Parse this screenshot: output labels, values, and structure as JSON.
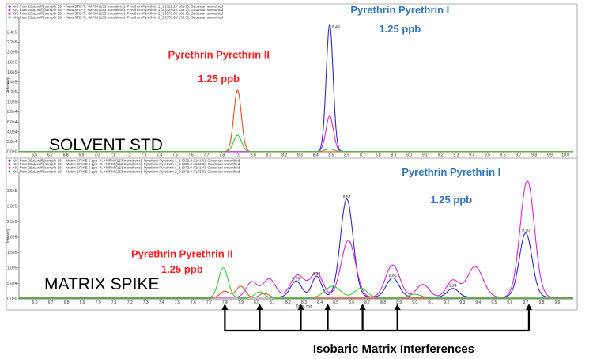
{
  "chart_data": [
    {
      "type": "line",
      "panel": "top",
      "legend": [
        {
          "text": "XIC from 25uL.wiff (sample 59) - Neat STD-7, +MRM (153 transitions): Pyrethrin Pyrethrin 1_1 (329.2 / 161.0), Gaussian smoothed",
          "color": "#2a2ad0"
        },
        {
          "text": "XIC from 25uL.wiff (sample 59) - Neat STD-7, +MRM (153 transitions): Pyrethrin Pyrethrin 1_3 (329.2 / 133.0), Gaussian smoothed",
          "color": "#e020e0"
        },
        {
          "text": "XIC from 25uL.wiff (sample 59) - Neat STD-7, +MRM (153 transitions): Pyrethrin Pyrethrin 2_1 (373.0 / 161.4), Gaussian smoothed",
          "color": "#e8501e"
        },
        {
          "text": "XIC from 25uL.wiff (sample 59) - Neat STD-7, +MRM (153 transitions): Pyrethrin Pyrethrin 2_2 (373.0 / 133.0), Gaussian smoothed",
          "color": "#30d030"
        }
      ],
      "ylabel": "Intensity",
      "xlim": [
        6.5,
        10.05
      ],
      "ylim": [
        0,
        2.7
      ],
      "yunit": "e5",
      "xticks": [
        "6.6",
        "6.7",
        "6.8",
        "6.9",
        "7.0",
        "7.1",
        "7.2",
        "7.3",
        "7.4",
        "7.5",
        "7.6",
        "7.7",
        "7.8",
        "7.9",
        "8.0",
        "8.1",
        "8.2",
        "8.3",
        "8.4",
        "8.5",
        "8.6",
        "8.7",
        "8.8",
        "8.9",
        "9.0",
        "9.1",
        "9.2",
        "9.3",
        "9.4",
        "9.5",
        "9.6",
        "9.7",
        "9.8",
        "9.9",
        "10.0"
      ],
      "yticks": [
        "0.0e0",
        "2.0e4",
        "4.0e4",
        "6.0e4",
        "8.0e4",
        "1.0e5",
        "1.2e5",
        "1.4e5",
        "1.6e5",
        "1.8e5",
        "2.0e5",
        "2.2e5",
        "2.4e5"
      ],
      "ytick_values": [
        0,
        0.2,
        0.4,
        0.6,
        0.8,
        1.0,
        1.2,
        1.4,
        1.6,
        1.8,
        2.0,
        2.2,
        2.4
      ],
      "series": [
        {
          "color": "#2a2ad0",
          "baseline": 0.003,
          "peaks": [
            {
              "x": 8.49,
              "y": 2.57,
              "w": 0.022
            }
          ]
        },
        {
          "color": "#e020e0",
          "baseline": 0.002,
          "peaks": [
            {
              "x": 8.49,
              "y": 0.72,
              "w": 0.024
            }
          ]
        },
        {
          "color": "#e8501e",
          "baseline": 0.002,
          "peaks": [
            {
              "x": 7.9,
              "y": 1.24,
              "w": 0.024
            }
          ]
        },
        {
          "color": "#30d030",
          "baseline": 0.004,
          "peaks": [
            {
              "x": 7.9,
              "y": 0.33,
              "w": 0.025
            },
            {
              "x": 8.49,
              "y": 0.05,
              "w": 0.03
            }
          ]
        }
      ],
      "peak_labels": [
        {
          "text": "8.49",
          "x": 8.53,
          "y": 2.48
        }
      ],
      "label": "SOLVENT STD",
      "annotations": [
        {
          "text": "Pyrethrin Pyrethrin II",
          "style": "red",
          "x": 7.78,
          "y": 1.88
        },
        {
          "text": "1.25 ppb",
          "style": "red",
          "x": 7.78,
          "y": 1.4
        },
        {
          "text": "Pyrethrin Pyrethrin I",
          "style": "blue",
          "x": 8.94,
          "y": 2.78
        },
        {
          "text": "1.25 ppb",
          "style": "blue",
          "x": 8.94,
          "y": 2.4
        }
      ]
    },
    {
      "type": "line",
      "panel": "bottom",
      "legend": [
        {
          "text": "XIC from 25uL.wiff (sample 18) - Matrix SPIKE 5 ppb -4, +MRM (153 transitions): Pyrethrin Pyrethrin 1_1 (329.2 / 161.0), Gaussian smoothed",
          "color": "#2a2ad0"
        },
        {
          "text": "XIC from 25uL.wiff (sample 18) - Matrix SPIKE 5 ppb -4, +MRM (153 transitions): Pyrethrin Pyrethrin 1_3 (329.2 / 133.0), Gaussian smoothed",
          "color": "#e020e0"
        },
        {
          "text": "XIC from 25uL.wiff (sample 18) - Matrix SPIKE 5 ppb -4, +MRM (153 transitions): Pyrethrin Pyrethrin 2_1 (373.0 / 161.4), Gaussian smoothed",
          "color": "#e8501e"
        },
        {
          "text": "XIC from 25uL.wiff (sample 18) - Matrix SPIKE 5 ppb -4, +MRM (153 transitions): Pyrethrin Pyrethrin 2_2 (373.0 / 133.0), Gaussian smoothed",
          "color": "#30d030"
        }
      ],
      "ylabel": "Intensity",
      "xlabel": "Time, min",
      "xlim": [
        6.5,
        10.0
      ],
      "ylim": [
        0,
        4.1
      ],
      "yunit": "e5",
      "xticks": [
        "6.6",
        "6.7",
        "6.8",
        "6.9",
        "7.0",
        "7.1",
        "7.2",
        "7.3",
        "7.4",
        "7.5",
        "7.6",
        "7.7",
        "7.8",
        "7.9",
        "8.0",
        "8.1",
        "8.2",
        "8.3",
        "8.4",
        "8.5",
        "8.6",
        "8.7",
        "8.8",
        "8.9",
        "9.0",
        "9.1",
        "9.2",
        "9.3",
        "9.4",
        "9.5",
        "9.6",
        "9.7",
        "9.8",
        "9.9"
      ],
      "yticks": [
        "0.0e0",
        "5.0e4",
        "1.0e5",
        "1.5e5",
        "2.0e5",
        "2.5e5",
        "3.0e5",
        "3.5e5"
      ],
      "ytick_values": [
        0,
        0.5,
        1.0,
        1.5,
        2.0,
        2.5,
        3.0,
        3.5
      ],
      "series": [
        {
          "color": "#2a2ad0",
          "baseline": 0.06,
          "peaks": [
            {
              "x": 8.25,
              "y": 0.52,
              "w": 0.035
            },
            {
              "x": 8.38,
              "y": 0.68,
              "w": 0.03
            },
            {
              "x": 8.57,
              "y": 3.18,
              "w": 0.04
            },
            {
              "x": 8.86,
              "y": 0.62,
              "w": 0.04
            },
            {
              "x": 9.24,
              "y": 0.28,
              "w": 0.035
            },
            {
              "x": 9.7,
              "y": 2.08,
              "w": 0.04
            }
          ]
        },
        {
          "color": "#e020e0",
          "baseline": 0.05,
          "peaks": [
            {
              "x": 7.97,
              "y": 0.5,
              "w": 0.035
            },
            {
              "x": 8.08,
              "y": 0.6,
              "w": 0.04
            },
            {
              "x": 8.26,
              "y": 0.72,
              "w": 0.045
            },
            {
              "x": 8.38,
              "y": 0.78,
              "w": 0.04
            },
            {
              "x": 8.58,
              "y": 1.85,
              "w": 0.045
            },
            {
              "x": 8.86,
              "y": 1.05,
              "w": 0.045
            },
            {
              "x": 9.05,
              "y": 0.42,
              "w": 0.04
            },
            {
              "x": 9.24,
              "y": 0.55,
              "w": 0.04
            },
            {
              "x": 9.38,
              "y": 1.0,
              "w": 0.05
            },
            {
              "x": 9.71,
              "y": 3.78,
              "w": 0.045
            }
          ]
        },
        {
          "color": "#e8501e",
          "baseline": 0.03,
          "peaks": [
            {
              "x": 7.8,
              "y": 0.22,
              "w": 0.03
            },
            {
              "x": 7.9,
              "y": 0.38,
              "w": 0.03
            },
            {
              "x": 8.05,
              "y": 0.15,
              "w": 0.03
            }
          ]
        },
        {
          "color": "#30d030",
          "baseline": 0.03,
          "peaks": [
            {
              "x": 7.79,
              "y": 0.98,
              "w": 0.03
            },
            {
              "x": 8.02,
              "y": 0.2,
              "w": 0.03
            },
            {
              "x": 8.48,
              "y": 0.38,
              "w": 0.05
            },
            {
              "x": 8.66,
              "y": 0.32,
              "w": 0.04
            },
            {
              "x": 9.0,
              "y": 0.12,
              "w": 0.04
            }
          ]
        }
      ],
      "peak_labels": [
        {
          "text": "8.25",
          "x": 8.25,
          "y": 0.6
        },
        {
          "text": "8.38",
          "x": 8.38,
          "y": 0.77
        },
        {
          "text": "8.57",
          "x": 8.57,
          "y": 3.26
        },
        {
          "text": "8.86",
          "x": 8.86,
          "y": 0.72
        },
        {
          "text": "9.24",
          "x": 9.24,
          "y": 0.38
        },
        {
          "text": "9.70",
          "x": 9.7,
          "y": 2.18
        }
      ],
      "label": "MATRIX SPIKE",
      "annotations": [
        {
          "text": "Pyrethrin Pyrethrin II",
          "style": "red",
          "x": 7.53,
          "y": 1.35
        },
        {
          "text": "1.25 ppb",
          "style": "red",
          "x": 7.53,
          "y": 0.85
        },
        {
          "text": "Pyrethrin Pyrethrin I",
          "style": "blue",
          "x": 9.23,
          "y": 4.0
        },
        {
          "text": "1.25 ppb",
          "style": "blue",
          "x": 9.23,
          "y": 3.1
        }
      ],
      "interference_arrows_x": [
        7.8,
        8.02,
        8.28,
        8.45,
        8.67,
        8.89,
        9.72
      ],
      "interference_label": "Isobaric  Matrix Interferences"
    }
  ]
}
